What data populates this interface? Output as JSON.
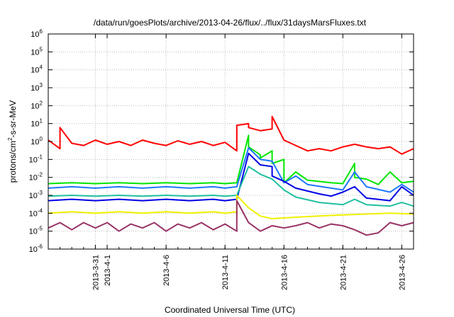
{
  "chart_data": {
    "type": "line",
    "title": "/data/run/goesPlots/archive/2013-04-26/flux/../flux/31daysMarsFluxes.txt",
    "xlabel": "Coordinated Universal Time (UTC)",
    "ylabel_parts": {
      "prefix": "protons/cm",
      "exponent": "2",
      "suffix": "-s-sr-MeV"
    },
    "yscale": "log",
    "ylim": [
      1e-06,
      1000000.0
    ],
    "xlim": [
      "2013-03-27",
      "2013-04-27"
    ],
    "y_ticks": [
      {
        "value": 1e-06,
        "base": "10",
        "exp": "-6"
      },
      {
        "value": 1e-05,
        "base": "10",
        "exp": "-5"
      },
      {
        "value": 0.0001,
        "base": "10",
        "exp": "-4"
      },
      {
        "value": 0.001,
        "base": "10",
        "exp": "-3"
      },
      {
        "value": 0.01,
        "base": "10",
        "exp": "-2"
      },
      {
        "value": 0.1,
        "base": "10",
        "exp": "-1"
      },
      {
        "value": 1,
        "base": "10",
        "exp": "0"
      },
      {
        "value": 10.0,
        "base": "10",
        "exp": "1"
      },
      {
        "value": 100.0,
        "base": "10",
        "exp": "2"
      },
      {
        "value": 1000.0,
        "base": "10",
        "exp": "3"
      },
      {
        "value": 10000.0,
        "base": "10",
        "exp": "4"
      },
      {
        "value": 100000.0,
        "base": "10",
        "exp": "5"
      },
      {
        "value": 1000000.0,
        "base": "10",
        "exp": "6"
      }
    ],
    "x_ticks": [
      {
        "value": "2013-03-31",
        "label": "2013-3-31"
      },
      {
        "value": "2013-04-01",
        "label": "2013-4-1"
      },
      {
        "value": "2013-04-06",
        "label": "2013-4-6"
      },
      {
        "value": "2013-04-11",
        "label": "2013-4-11"
      },
      {
        "value": "2013-04-16",
        "label": "2013-4-16"
      },
      {
        "value": "2013-04-21",
        "label": "2013-4-21"
      },
      {
        "value": "2013-04-26",
        "label": "2013-4-26"
      }
    ],
    "grid": true,
    "series": [
      {
        "color": "#ff0000",
        "x": [
          "2013-03-27",
          "2013-03-28",
          "2013-03-28",
          "2013-03-29",
          "2013-03-30",
          "2013-03-31",
          "2013-04-01",
          "2013-04-02",
          "2013-04-03",
          "2013-04-04",
          "2013-04-05",
          "2013-04-06",
          "2013-04-07",
          "2013-04-08",
          "2013-04-09",
          "2013-04-10",
          "2013-04-11",
          "2013-04-12",
          "2013-04-12",
          "2013-04-13",
          "2013-04-13",
          "2013-04-14",
          "2013-04-15",
          "2013-04-15",
          "2013-04-16",
          "2013-04-17",
          "2013-04-18",
          "2013-04-19",
          "2013-04-20",
          "2013-04-21",
          "2013-04-22",
          "2013-04-23",
          "2013-04-24",
          "2013-04-25",
          "2013-04-26",
          "2013-04-27"
        ],
        "y": [
          1.2,
          0.4,
          6,
          0.8,
          0.6,
          1.2,
          0.7,
          1.0,
          0.6,
          1.2,
          0.8,
          0.6,
          1.1,
          0.7,
          1.0,
          0.6,
          0.9,
          0.3,
          8,
          10,
          6,
          4,
          5,
          25,
          1.2,
          0.6,
          0.3,
          0.4,
          0.3,
          0.5,
          0.7,
          0.5,
          0.4,
          0.5,
          0.2,
          0.4
        ]
      },
      {
        "color": "#00e600",
        "x": [
          "2013-03-27",
          "2013-03-29",
          "2013-03-31",
          "2013-04-02",
          "2013-04-04",
          "2013-04-06",
          "2013-04-08",
          "2013-04-10",
          "2013-04-11",
          "2013-04-12",
          "2013-04-13",
          "2013-04-13",
          "2013-04-14",
          "2013-04-14",
          "2013-04-15",
          "2013-04-15",
          "2013-04-16",
          "2013-04-16",
          "2013-04-17",
          "2013-04-18",
          "2013-04-20",
          "2013-04-21",
          "2013-04-22",
          "2013-04-22",
          "2013-04-23",
          "2013-04-24",
          "2013-04-25",
          "2013-04-26",
          "2013-04-27"
        ],
        "y": [
          0.0045,
          0.005,
          0.0045,
          0.005,
          0.0045,
          0.005,
          0.0045,
          0.005,
          0.0045,
          0.005,
          2.2,
          0.5,
          0.18,
          0.12,
          0.3,
          0.06,
          0.1,
          0.005,
          0.02,
          0.007,
          0.005,
          0.0045,
          0.06,
          0.01,
          0.008,
          0.004,
          0.02,
          0.005,
          0.006
        ]
      },
      {
        "color": "#1e78ff",
        "x": [
          "2013-03-27",
          "2013-03-29",
          "2013-03-31",
          "2013-04-02",
          "2013-04-04",
          "2013-04-06",
          "2013-04-08",
          "2013-04-10",
          "2013-04-11",
          "2013-04-12",
          "2013-04-13",
          "2013-04-14",
          "2013-04-15",
          "2013-04-16",
          "2013-04-17",
          "2013-04-18",
          "2013-04-20",
          "2013-04-21",
          "2013-04-22",
          "2013-04-23",
          "2013-04-25",
          "2013-04-26",
          "2013-04-27"
        ],
        "y": [
          0.0025,
          0.003,
          0.0025,
          0.003,
          0.0025,
          0.003,
          0.0025,
          0.003,
          0.0025,
          0.003,
          0.45,
          0.1,
          0.08,
          0.005,
          0.012,
          0.004,
          0.0025,
          0.002,
          0.02,
          0.003,
          0.0015,
          0.004,
          0.0015
        ]
      },
      {
        "color": "#0000e6",
        "x": [
          "2013-03-27",
          "2013-03-29",
          "2013-03-31",
          "2013-04-02",
          "2013-04-04",
          "2013-04-06",
          "2013-04-08",
          "2013-04-10",
          "2013-04-11",
          "2013-04-12",
          "2013-04-13",
          "2013-04-14",
          "2013-04-15",
          "2013-04-15",
          "2013-04-16",
          "2013-04-17",
          "2013-04-19",
          "2013-04-20",
          "2013-04-21",
          "2013-04-22",
          "2013-04-23",
          "2013-04-25",
          "2013-04-26",
          "2013-04-27"
        ],
        "y": [
          0.0005,
          0.0006,
          0.0005,
          0.0006,
          0.0005,
          0.0006,
          0.0005,
          0.0006,
          0.0005,
          0.0006,
          0.22,
          0.05,
          0.04,
          0.012,
          0.006,
          0.0025,
          0.0012,
          0.0009,
          0.0015,
          0.003,
          0.0007,
          0.0005,
          0.003,
          0.001
        ]
      },
      {
        "color": "#20c0a0",
        "x": [
          "2013-03-27",
          "2013-03-29",
          "2013-03-31",
          "2013-04-02",
          "2013-04-04",
          "2013-04-06",
          "2013-04-08",
          "2013-04-10",
          "2013-04-11",
          "2013-04-12",
          "2013-04-13",
          "2013-04-14",
          "2013-04-15",
          "2013-04-16",
          "2013-04-17",
          "2013-04-19",
          "2013-04-21",
          "2013-04-22",
          "2013-04-23",
          "2013-04-25",
          "2013-04-26",
          "2013-04-27"
        ],
        "y": [
          0.0009,
          0.001,
          0.0009,
          0.001,
          0.0009,
          0.001,
          0.0009,
          0.001,
          0.0009,
          0.001,
          0.04,
          0.015,
          0.008,
          0.002,
          0.0008,
          0.0004,
          0.0003,
          0.0006,
          0.0003,
          0.00025,
          0.0004,
          0.00025
        ]
      },
      {
        "color": "#f0f000",
        "x": [
          "2013-03-27",
          "2013-03-29",
          "2013-03-31",
          "2013-04-02",
          "2013-04-04",
          "2013-04-06",
          "2013-04-08",
          "2013-04-10",
          "2013-04-11",
          "2013-04-12",
          "2013-04-12",
          "2013-04-13",
          "2013-04-14",
          "2013-04-15",
          "2013-04-17",
          "2013-04-19",
          "2013-04-21",
          "2013-04-23",
          "2013-04-25",
          "2013-04-27"
        ],
        "y": [
          0.0001,
          0.00012,
          0.0001,
          0.00012,
          0.0001,
          0.00012,
          0.0001,
          0.00012,
          0.0001,
          0.00012,
          0.001,
          0.0002,
          7e-05,
          5e-05,
          6e-05,
          7e-05,
          8e-05,
          9e-05,
          0.0001,
          9e-05
        ]
      },
      {
        "color": "#993366",
        "x": [
          "2013-03-27",
          "2013-03-28",
          "2013-03-29",
          "2013-03-30",
          "2013-03-31",
          "2013-04-01",
          "2013-04-02",
          "2013-04-03",
          "2013-04-04",
          "2013-04-05",
          "2013-04-06",
          "2013-04-07",
          "2013-04-08",
          "2013-04-09",
          "2013-04-10",
          "2013-04-11",
          "2013-04-12",
          "2013-04-12",
          "2013-04-13",
          "2013-04-14",
          "2013-04-15",
          "2013-04-16",
          "2013-04-17",
          "2013-04-18",
          "2013-04-19",
          "2013-04-20",
          "2013-04-21",
          "2013-04-22",
          "2013-04-23",
          "2013-04-24",
          "2013-04-25",
          "2013-04-26",
          "2013-04-27"
        ],
        "y": [
          1.5e-05,
          3e-05,
          1.2e-05,
          3e-05,
          1.5e-05,
          3e-05,
          1e-05,
          2.5e-05,
          1.5e-05,
          3e-05,
          1e-05,
          2.5e-05,
          1.5e-05,
          3e-05,
          1.2e-05,
          2.5e-05,
          1e-05,
          0.0005,
          3e-05,
          1e-05,
          2e-05,
          1.5e-05,
          2e-05,
          3e-05,
          1.5e-05,
          2.5e-05,
          2e-05,
          1.2e-05,
          6e-06,
          8e-06,
          3e-05,
          2e-05,
          3e-05
        ]
      }
    ]
  }
}
